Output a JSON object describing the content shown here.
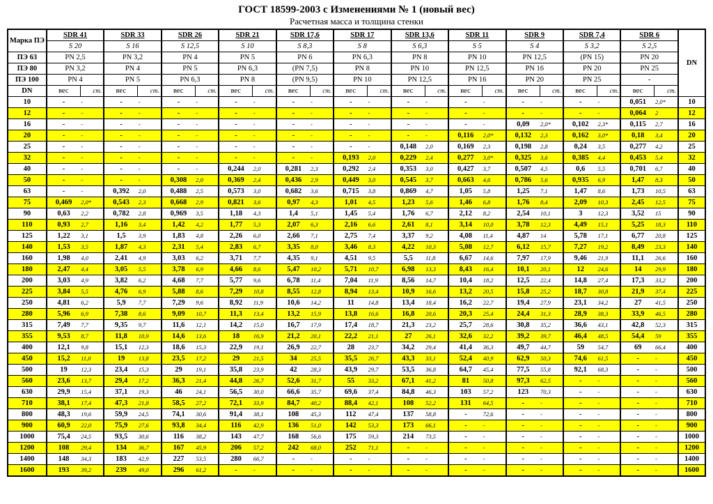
{
  "title": "ГОСТ 18599-2003 с Изменениями № 1 (новый вес)",
  "subtitle": "Расчетная масса и толщина стенки",
  "leftLabels": [
    "Марка ПЭ",
    "ПЭ 63",
    "ПЭ 80",
    "ПЭ 100",
    "DN"
  ],
  "sdr": [
    "SDR 41",
    "SDR 33",
    "SDR 26",
    "SDR 21",
    "SDR 17,6",
    "SDR 17",
    "SDR 13,6",
    "SDR 11",
    "SDR 9",
    "SDR 7,4",
    "SDR 6"
  ],
  "s": [
    "S 20",
    "S 16",
    "S 12,5",
    "S 10",
    "S 8,3",
    "S 8",
    "S 6,3",
    "S 5",
    "S 4",
    "S 3,2",
    "S 2,5"
  ],
  "pe63": [
    "PN 2,5",
    "PN 3,2",
    "PN 4",
    "PN 5",
    "PN 6",
    "PN 6,3",
    "PN 8",
    "PN 10",
    "PN 12,5",
    "(PN 15)",
    "PN 20"
  ],
  "pe80": [
    "PN 3,2",
    "PN 4",
    "PN 5",
    "PN 6,3",
    "(PN 7,5)",
    "PN 8",
    "PN 10",
    "PN 12,5",
    "PN 16",
    "PN 20",
    "PN 25"
  ],
  "pe100": [
    "PN 4",
    "PN 5",
    "PN 6,3",
    "PN 8",
    "(PN 9,5)",
    "PN 10",
    "PN 12,5",
    "PN 16",
    "PN 20",
    "PN 25",
    "-"
  ],
  "subhead": [
    "вес",
    "ст."
  ],
  "dn": [
    10,
    12,
    16,
    20,
    25,
    32,
    40,
    50,
    63,
    75,
    90,
    110,
    125,
    140,
    160,
    180,
    200,
    225,
    250,
    280,
    315,
    355,
    400,
    450,
    500,
    560,
    630,
    710,
    800,
    900,
    1000,
    1200,
    1400,
    1600
  ],
  "rows": [
    [
      [
        "-",
        "-"
      ],
      [
        "-",
        "-"
      ],
      [
        "-",
        "-"
      ],
      [
        "-",
        "-"
      ],
      [
        "-",
        "-"
      ],
      [
        "-",
        "-"
      ],
      [
        "-",
        "-"
      ],
      [
        "-",
        "-"
      ],
      [
        "-",
        "-"
      ],
      [
        "-",
        "-"
      ],
      [
        "0,051",
        "2,0*"
      ]
    ],
    [
      [
        "-",
        "-"
      ],
      [
        "-",
        "-"
      ],
      [
        "-",
        "-"
      ],
      [
        "-",
        "-"
      ],
      [
        "-",
        "-"
      ],
      [
        "-",
        "-"
      ],
      [
        "-",
        "-"
      ],
      [
        "-",
        "-"
      ],
      [
        "-",
        "-"
      ],
      [
        "-",
        "-"
      ],
      [
        "0,064",
        "2"
      ]
    ],
    [
      [
        "-",
        "-"
      ],
      [
        "-",
        "-"
      ],
      [
        "-",
        "-"
      ],
      [
        "-",
        "-"
      ],
      [
        "-",
        "-"
      ],
      [
        "-",
        "-"
      ],
      [
        "-",
        "-"
      ],
      [
        "-",
        "-"
      ],
      [
        "0,09",
        "2,0*"
      ],
      [
        "0,102",
        "2,3*"
      ],
      [
        "0,115",
        "2,7"
      ]
    ],
    [
      [
        "-",
        "-"
      ],
      [
        "-",
        "-"
      ],
      [
        "-",
        "-"
      ],
      [
        "-",
        "-"
      ],
      [
        "-",
        "-"
      ],
      [
        "-",
        "-"
      ],
      [
        "-",
        "-"
      ],
      [
        "0,116",
        "2,0*"
      ],
      [
        "0,132",
        "2,3"
      ],
      [
        "0,162",
        "3,0*"
      ],
      [
        "0,18",
        "3,4"
      ]
    ],
    [
      [
        "-",
        "-"
      ],
      [
        "-",
        "-"
      ],
      [
        "-",
        "-"
      ],
      [
        "-",
        "-"
      ],
      [
        "-",
        "-"
      ],
      [
        "-",
        "-"
      ],
      [
        "0,148",
        "2,0"
      ],
      [
        "0,169",
        "2,3"
      ],
      [
        "0,198",
        "2,8"
      ],
      [
        "0,24",
        "3,5"
      ],
      [
        "0,277",
        "4,2"
      ]
    ],
    [
      [
        "-",
        "-"
      ],
      [
        "-",
        "-"
      ],
      [
        "-",
        "-"
      ],
      [
        "-",
        "-"
      ],
      [
        "-",
        "-"
      ],
      [
        "0,193",
        "2,0"
      ],
      [
        "0,229",
        "2,4"
      ],
      [
        "0,277",
        "3,0*"
      ],
      [
        "0,325",
        "3,6"
      ],
      [
        "0,385",
        "4,4"
      ],
      [
        "0,453",
        "5,4"
      ]
    ],
    [
      [
        "-",
        "-"
      ],
      [
        "-",
        "-"
      ],
      [
        "-",
        "-"
      ],
      [
        "0,244",
        "2,0"
      ],
      [
        "0,281",
        "2,3"
      ],
      [
        "0,292",
        "2,4"
      ],
      [
        "0,353",
        "3,0"
      ],
      [
        "0,427",
        "3,7"
      ],
      [
        "0,507",
        "4,5"
      ],
      [
        "0,6",
        "5,5"
      ],
      [
        "0,701",
        "6,7"
      ]
    ],
    [
      [
        "-",
        "-"
      ],
      [
        "-",
        "-"
      ],
      [
        "0,308",
        "2,0"
      ],
      [
        "0,369",
        "2,4"
      ],
      [
        "0,436",
        "2,9"
      ],
      [
        "0,449",
        "3,0"
      ],
      [
        "0,545",
        "3,7"
      ],
      [
        "0,663",
        "4,6"
      ],
      [
        "0,786",
        "5,6"
      ],
      [
        "0,935",
        "6,9"
      ],
      [
        "1,47",
        "8,3"
      ]
    ],
    [
      [
        "-",
        "-"
      ],
      [
        "0,392",
        "2,0"
      ],
      [
        "0,488",
        "2,5"
      ],
      [
        "0,573",
        "3,0"
      ],
      [
        "0,682",
        "3,6"
      ],
      [
        "0,715",
        "3,8"
      ],
      [
        "0,869",
        "4,7"
      ],
      [
        "1,05",
        "5,8"
      ],
      [
        "1,25",
        "7,1"
      ],
      [
        "1,47",
        "8,6"
      ],
      [
        "1,73",
        "10,5"
      ]
    ],
    [
      [
        "0,469",
        "2,0*"
      ],
      [
        "0,543",
        "2,3"
      ],
      [
        "0,668",
        "2,9"
      ],
      [
        "0,821",
        "3,6"
      ],
      [
        "0,97",
        "4,3"
      ],
      [
        "1,01",
        "4,5"
      ],
      [
        "1,23",
        "5,6"
      ],
      [
        "1,46",
        "6,8"
      ],
      [
        "1,76",
        "8,4"
      ],
      [
        "2,09",
        "10,3"
      ],
      [
        "2,45",
        "12,5"
      ]
    ],
    [
      [
        "0,63",
        "2,2"
      ],
      [
        "0,782",
        "2,8"
      ],
      [
        "0,969",
        "3,5"
      ],
      [
        "1,18",
        "4,3"
      ],
      [
        "1,4",
        "5,1"
      ],
      [
        "1,45",
        "5,4"
      ],
      [
        "1,76",
        "6,7"
      ],
      [
        "2,12",
        "8,2"
      ],
      [
        "2,54",
        "10,1"
      ],
      [
        "3",
        "12,3"
      ],
      [
        "3,52",
        "15"
      ]
    ],
    [
      [
        "0,93",
        "2,7"
      ],
      [
        "1,16",
        "3,4"
      ],
      [
        "1,42",
        "4,2"
      ],
      [
        "1,77",
        "5,3"
      ],
      [
        "2,07",
        "6,3"
      ],
      [
        "2,16",
        "6,6"
      ],
      [
        "2,61",
        "8,1"
      ],
      [
        "3,14",
        "10,0"
      ],
      [
        "3,78",
        "12,3"
      ],
      [
        "4,49",
        "15,1"
      ],
      [
        "5,25",
        "18,3"
      ]
    ],
    [
      [
        "1,22",
        "3,1"
      ],
      [
        "1,5",
        "3,9"
      ],
      [
        "1,83",
        "4,8"
      ],
      [
        "2,26",
        "6,0"
      ],
      [
        "2,66",
        "7,1"
      ],
      [
        "2,75",
        "7,4"
      ],
      [
        "3,37",
        "9,2"
      ],
      [
        "4,08",
        "11,4"
      ],
      [
        "4,87",
        "14"
      ],
      [
        "5,78",
        "17,1"
      ],
      [
        "6,77",
        "20,8"
      ]
    ],
    [
      [
        "1,53",
        "3,5"
      ],
      [
        "1,87",
        "4,3"
      ],
      [
        "2,31",
        "5,4"
      ],
      [
        "2,83",
        "6,7"
      ],
      [
        "3,35",
        "8,0"
      ],
      [
        "3,46",
        "8,3"
      ],
      [
        "4,22",
        "10,3"
      ],
      [
        "5,08",
        "12,7"
      ],
      [
        "6,12",
        "15,7"
      ],
      [
        "7,27",
        "19,2"
      ],
      [
        "8,49",
        "23,3"
      ]
    ],
    [
      [
        "1,98",
        "4,0"
      ],
      [
        "2,41",
        "4,9"
      ],
      [
        "3,03",
        "6,2"
      ],
      [
        "3,71",
        "7,7"
      ],
      [
        "4,35",
        "9,1"
      ],
      [
        "4,51",
        "9,5"
      ],
      [
        "5,5",
        "11,8"
      ],
      [
        "6,67",
        "14,6"
      ],
      [
        "7,97",
        "17,9"
      ],
      [
        "9,46",
        "21,9"
      ],
      [
        "11,1",
        "26,6"
      ]
    ],
    [
      [
        "2,47",
        "4,4"
      ],
      [
        "3,05",
        "5,5"
      ],
      [
        "3,78",
        "6,9"
      ],
      [
        "4,66",
        "8,6"
      ],
      [
        "5,47",
        "10,2"
      ],
      [
        "5,71",
        "10,7"
      ],
      [
        "6,98",
        "13,3"
      ],
      [
        "8,43",
        "16,4"
      ],
      [
        "10,1",
        "20,1"
      ],
      [
        "12",
        "24,6"
      ],
      [
        "14",
        "29,9"
      ]
    ],
    [
      [
        "3,03",
        "4,9"
      ],
      [
        "3,82",
        "6,2"
      ],
      [
        "4,68",
        "7,7"
      ],
      [
        "5,77",
        "9,6"
      ],
      [
        "6,78",
        "11,4"
      ],
      [
        "7,04",
        "11,9"
      ],
      [
        "8,56",
        "14,7"
      ],
      [
        "10,4",
        "18,2"
      ],
      [
        "12,5",
        "22,4"
      ],
      [
        "14,8",
        "27,4"
      ],
      [
        "17,3",
        "33,2"
      ]
    ],
    [
      [
        "3,84",
        "5,5"
      ],
      [
        "4,76",
        "6,9"
      ],
      [
        "5,88",
        "8,6"
      ],
      [
        "7,29",
        "10,8"
      ],
      [
        "8,55",
        "12,8"
      ],
      [
        "8,94",
        "13,4"
      ],
      [
        "10,9",
        "16,6"
      ],
      [
        "13,2",
        "20,5"
      ],
      [
        "15,8",
        "25,2"
      ],
      [
        "18,7",
        "30,8"
      ],
      [
        "21,9",
        "37,4"
      ]
    ],
    [
      [
        "4,81",
        "6,2"
      ],
      [
        "5,9",
        "7,7"
      ],
      [
        "7,29",
        "9,6"
      ],
      [
        "8,92",
        "11,9"
      ],
      [
        "10,6",
        "14,2"
      ],
      [
        "11",
        "14,8"
      ],
      [
        "13,4",
        "18,4"
      ],
      [
        "16,2",
        "22,7"
      ],
      [
        "19,4",
        "27,9"
      ],
      [
        "23,1",
        "34,2"
      ],
      [
        "27",
        "41,5"
      ]
    ],
    [
      [
        "5,96",
        "6,9"
      ],
      [
        "7,38",
        "8,6"
      ],
      [
        "9,09",
        "10,7"
      ],
      [
        "11,3",
        "13,4"
      ],
      [
        "13,2",
        "15,9"
      ],
      [
        "13,8",
        "16,6"
      ],
      [
        "16,8",
        "20,6"
      ],
      [
        "20,3",
        "25,4"
      ],
      [
        "24,4",
        "31,3"
      ],
      [
        "28,9",
        "38,3"
      ],
      [
        "33,9",
        "46,5"
      ]
    ],
    [
      [
        "7,49",
        "7,7"
      ],
      [
        "9,35",
        "9,7"
      ],
      [
        "11,6",
        "12,1"
      ],
      [
        "14,2",
        "15,0"
      ],
      [
        "16,7",
        "17,9"
      ],
      [
        "17,4",
        "18,7"
      ],
      [
        "21,3",
        "23,2"
      ],
      [
        "25,7",
        "28,6"
      ],
      [
        "30,8",
        "35,2"
      ],
      [
        "36,6",
        "43,1"
      ],
      [
        "42,8",
        "52,3"
      ]
    ],
    [
      [
        "9,53",
        "8,7"
      ],
      [
        "11,8",
        "10,9"
      ],
      [
        "14,6",
        "13,6"
      ],
      [
        "18",
        "16,9"
      ],
      [
        "21,2",
        "20,1"
      ],
      [
        "22,2",
        "21,1"
      ],
      [
        "27",
        "26,1"
      ],
      [
        "32,6",
        "32,2"
      ],
      [
        "39,2",
        "39,7"
      ],
      [
        "46,4",
        "48,5"
      ],
      [
        "54,4",
        "59"
      ]
    ],
    [
      [
        "12,1",
        "9,8"
      ],
      [
        "15,1",
        "12,3"
      ],
      [
        "18,6",
        "15,3"
      ],
      [
        "22,9",
        "19,1"
      ],
      [
        "26,9",
        "22,7"
      ],
      [
        "28",
        "23,7"
      ],
      [
        "34,2",
        "29,4"
      ],
      [
        "41,4",
        "36,3"
      ],
      [
        "49,7",
        "44,7"
      ],
      [
        "59",
        "54,7"
      ],
      [
        "69",
        "66,4"
      ]
    ],
    [
      [
        "15,2",
        "11,0"
      ],
      [
        "19",
        "13,8"
      ],
      [
        "23,5",
        "17,2"
      ],
      [
        "29",
        "21,5"
      ],
      [
        "34",
        "25,5"
      ],
      [
        "35,5",
        "26,7"
      ],
      [
        "43,3",
        "33,1"
      ],
      [
        "52,4",
        "40,9"
      ],
      [
        "62,9",
        "50,3"
      ],
      [
        "74,6",
        "61,5"
      ],
      [
        "-",
        "-"
      ]
    ],
    [
      [
        "19",
        "12,3"
      ],
      [
        "23,4",
        "15,3"
      ],
      [
        "29",
        "19,1"
      ],
      [
        "35,8",
        "23,9"
      ],
      [
        "42",
        "28,3"
      ],
      [
        "43,9",
        "29,7"
      ],
      [
        "53,5",
        "36,8"
      ],
      [
        "64,7",
        "45,4"
      ],
      [
        "77,5",
        "55,8"
      ],
      [
        "92,1",
        "68,3"
      ],
      [
        "-",
        "-"
      ]
    ],
    [
      [
        "23,6",
        "13,7"
      ],
      [
        "29,4",
        "17,2"
      ],
      [
        "36,3",
        "21,4"
      ],
      [
        "44,8",
        "26,7"
      ],
      [
        "52,6",
        "31,7"
      ],
      [
        "55",
        "33,2"
      ],
      [
        "67,1",
        "41,2"
      ],
      [
        "81",
        "50,8"
      ],
      [
        "97,3",
        "62,5"
      ],
      [
        "-",
        "-"
      ],
      [
        "-",
        "-"
      ]
    ],
    [
      [
        "29,9",
        "15,4"
      ],
      [
        "37,1",
        "19,3"
      ],
      [
        "46",
        "24,1"
      ],
      [
        "56,5",
        "30,0"
      ],
      [
        "66,6",
        "35,7"
      ],
      [
        "69,6",
        "37,4"
      ],
      [
        "84,8",
        "46,3"
      ],
      [
        "103",
        "57,2"
      ],
      [
        "123",
        "70,3"
      ],
      [
        "-",
        "-"
      ],
      [
        "-",
        "-"
      ]
    ],
    [
      [
        "38,1",
        "17,4"
      ],
      [
        "47,3",
        "21,8"
      ],
      [
        "58,5",
        "27,2"
      ],
      [
        "72,1",
        "33,9"
      ],
      [
        "84,7",
        "40,2"
      ],
      [
        "88,4",
        "42,1"
      ],
      [
        "108",
        "52,2"
      ],
      [
        "131",
        "64,5"
      ],
      [
        "-",
        "-"
      ],
      [
        "-",
        "-"
      ],
      [
        "-",
        "-"
      ]
    ],
    [
      [
        "48,3",
        "19,6"
      ],
      [
        "59,9",
        "24,5"
      ],
      [
        "74,1",
        "30,6"
      ],
      [
        "91,4",
        "38,1"
      ],
      [
        "108",
        "45,3"
      ],
      [
        "112",
        "47,4"
      ],
      [
        "137",
        "58,8"
      ],
      [
        "-",
        "72,6"
      ],
      [
        "-",
        "-"
      ],
      [
        "-",
        "-"
      ],
      [
        "-",
        "-"
      ]
    ],
    [
      [
        "60,9",
        "22,0"
      ],
      [
        "75,9",
        "27,6"
      ],
      [
        "93,8",
        "34,4"
      ],
      [
        "116",
        "42,9"
      ],
      [
        "136",
        "51,0"
      ],
      [
        "142",
        "53,3"
      ],
      [
        "173",
        "66,1"
      ],
      [
        "-",
        "-"
      ],
      [
        "-",
        "-"
      ],
      [
        "-",
        "-"
      ],
      [
        "-",
        "-"
      ]
    ],
    [
      [
        "75,4",
        "24,5"
      ],
      [
        "93,5",
        "30,6"
      ],
      [
        "116",
        "38,2"
      ],
      [
        "143",
        "47,7"
      ],
      [
        "168",
        "56,6"
      ],
      [
        "175",
        "59,3"
      ],
      [
        "214",
        "73,5"
      ],
      [
        "-",
        "-"
      ],
      [
        "-",
        "-"
      ],
      [
        "-",
        "-"
      ],
      [
        "-",
        "-"
      ]
    ],
    [
      [
        "108",
        "29,4"
      ],
      [
        "134",
        "36,7"
      ],
      [
        "167",
        "45,9"
      ],
      [
        "206",
        "57,2"
      ],
      [
        "242",
        "68,0"
      ],
      [
        "252",
        "71,1"
      ],
      [
        "-",
        "-"
      ],
      [
        "-",
        "-"
      ],
      [
        "-",
        "-"
      ],
      [
        "-",
        "-"
      ],
      [
        "-",
        "-"
      ]
    ],
    [
      [
        "148",
        "34,3"
      ],
      [
        "183",
        "42,9"
      ],
      [
        "227",
        "53,5"
      ],
      [
        "280",
        "66,7"
      ],
      [
        "-",
        "-"
      ],
      [
        "-",
        "-"
      ],
      [
        "-",
        "-"
      ],
      [
        "-",
        "-"
      ],
      [
        "-",
        "-"
      ],
      [
        "-",
        "-"
      ],
      [
        "-",
        "-"
      ]
    ],
    [
      [
        "193",
        "39,2"
      ],
      [
        "239",
        "49,0"
      ],
      [
        "296",
        "61,2"
      ],
      [
        "-",
        "-"
      ],
      [
        "-",
        "-"
      ],
      [
        "-",
        "-"
      ],
      [
        "-",
        "-"
      ],
      [
        "-",
        "-"
      ],
      [
        "-",
        "-"
      ],
      [
        "-",
        "-"
      ],
      [
        "-",
        "-"
      ]
    ]
  ],
  "colors": {
    "highlight": "#ffff00"
  }
}
